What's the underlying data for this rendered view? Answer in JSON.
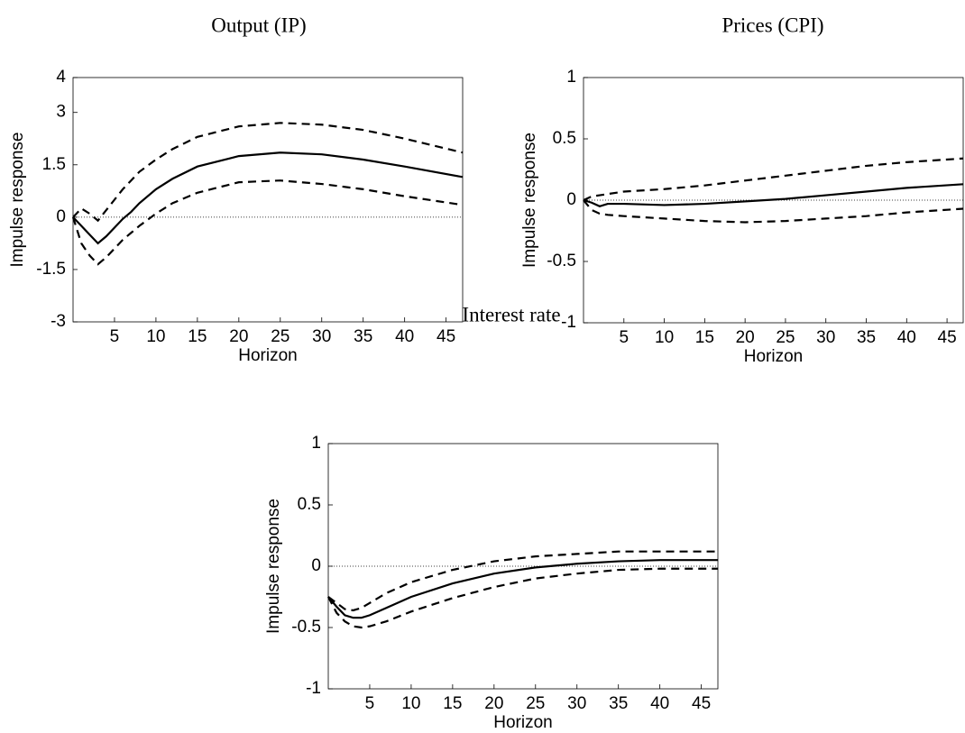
{
  "chart_data": [
    {
      "type": "line",
      "title": "Output (IP)",
      "xlabel": "Horizon",
      "ylabel": "Impulse response",
      "x": [
        0,
        1,
        2,
        3,
        4,
        5,
        6,
        7,
        8,
        10,
        12,
        15,
        20,
        25,
        30,
        35,
        40,
        47
      ],
      "series": [
        {
          "color": "#000000",
          "style": "solid",
          "values": [
            0,
            -0.25,
            -0.5,
            -0.75,
            -0.55,
            -0.3,
            -0.05,
            0.15,
            0.4,
            0.8,
            1.1,
            1.45,
            1.75,
            1.85,
            1.8,
            1.65,
            1.45,
            1.15
          ]
        },
        {
          "color": "#000000",
          "style": "dashed",
          "values": [
            0,
            0.25,
            0.1,
            -0.1,
            0.2,
            0.5,
            0.8,
            1.05,
            1.3,
            1.65,
            1.95,
            2.3,
            2.6,
            2.7,
            2.65,
            2.5,
            2.25,
            1.85
          ]
        },
        {
          "color": "#000000",
          "style": "dashed",
          "values": [
            0,
            -0.75,
            -1.1,
            -1.35,
            -1.15,
            -0.9,
            -0.65,
            -0.45,
            -0.25,
            0.1,
            0.4,
            0.7,
            1.0,
            1.05,
            0.95,
            0.8,
            0.6,
            0.35
          ]
        }
      ],
      "hline": 0,
      "xlim": [
        0,
        47
      ],
      "ylim": [
        -3,
        4
      ],
      "xticks": [
        5,
        10,
        15,
        20,
        25,
        30,
        35,
        40,
        45
      ],
      "yticks": [
        -3,
        -1.5,
        0,
        1.5,
        3,
        4
      ]
    },
    {
      "type": "line",
      "title": "Prices (CPI)",
      "xlabel": "Horizon",
      "ylabel": "Impulse response",
      "x": [
        0,
        1,
        2,
        3,
        5,
        10,
        15,
        20,
        25,
        30,
        35,
        40,
        47
      ],
      "series": [
        {
          "color": "#000000",
          "style": "solid",
          "values": [
            0,
            -0.02,
            -0.05,
            -0.03,
            -0.03,
            -0.04,
            -0.03,
            -0.01,
            0.01,
            0.04,
            0.07,
            0.1,
            0.13
          ]
        },
        {
          "color": "#000000",
          "style": "dashed",
          "values": [
            0,
            0.03,
            0.04,
            0.05,
            0.07,
            0.09,
            0.12,
            0.16,
            0.2,
            0.24,
            0.28,
            0.31,
            0.34
          ]
        },
        {
          "color": "#000000",
          "style": "dashed",
          "values": [
            0,
            -0.08,
            -0.11,
            -0.12,
            -0.13,
            -0.15,
            -0.17,
            -0.18,
            -0.17,
            -0.15,
            -0.13,
            -0.1,
            -0.07
          ]
        }
      ],
      "hline": 0,
      "xlim": [
        0,
        47
      ],
      "ylim": [
        -1,
        1
      ],
      "xticks": [
        5,
        10,
        15,
        20,
        25,
        30,
        35,
        40,
        45
      ],
      "yticks": [
        -1,
        -0.5,
        0,
        0.5,
        1
      ]
    },
    {
      "type": "line",
      "title": "Interest rate",
      "xlabel": "Horizon",
      "ylabel": "Impulse response",
      "x": [
        0,
        1,
        2,
        3,
        4,
        5,
        7,
        10,
        15,
        20,
        25,
        30,
        35,
        40,
        47
      ],
      "series": [
        {
          "color": "#000000",
          "style": "solid",
          "values": [
            -0.25,
            -0.33,
            -0.4,
            -0.42,
            -0.42,
            -0.4,
            -0.34,
            -0.25,
            -0.14,
            -0.06,
            -0.01,
            0.02,
            0.04,
            0.05,
            0.05
          ]
        },
        {
          "color": "#000000",
          "style": "dashed",
          "values": [
            -0.25,
            -0.3,
            -0.35,
            -0.36,
            -0.34,
            -0.3,
            -0.22,
            -0.13,
            -0.03,
            0.04,
            0.08,
            0.1,
            0.12,
            0.12,
            0.12
          ]
        },
        {
          "color": "#000000",
          "style": "dashed",
          "values": [
            -0.25,
            -0.38,
            -0.45,
            -0.49,
            -0.5,
            -0.49,
            -0.45,
            -0.37,
            -0.26,
            -0.17,
            -0.1,
            -0.06,
            -0.03,
            -0.02,
            -0.02
          ]
        }
      ],
      "hline": 0,
      "xlim": [
        0,
        47
      ],
      "ylim": [
        -1,
        1
      ],
      "xticks": [
        5,
        10,
        15,
        20,
        25,
        30,
        35,
        40,
        45
      ],
      "yticks": [
        -1,
        -0.5,
        0,
        0.5,
        1
      ]
    }
  ]
}
